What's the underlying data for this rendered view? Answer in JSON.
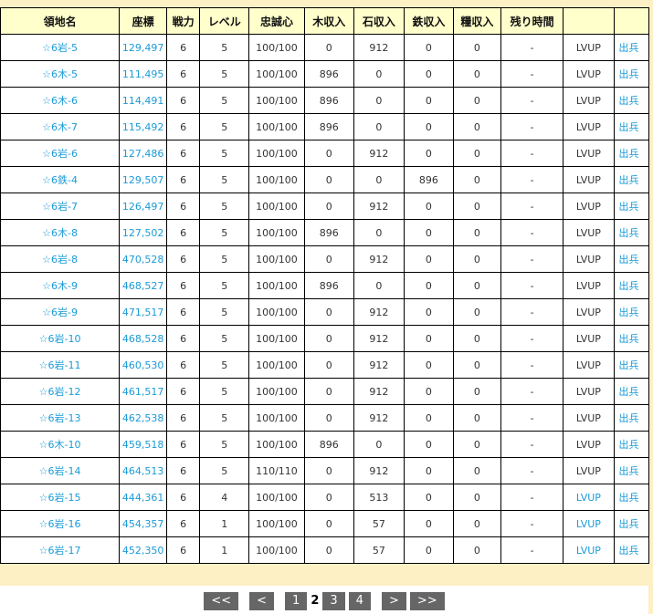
{
  "headers": [
    "領地名",
    "座標",
    "戦力",
    "レベル",
    "忠誠心",
    "木収入",
    "石収入",
    "鉄収入",
    "糧収入",
    "残り時間",
    "",
    ""
  ],
  "rows": [
    [
      "☆6岩-5",
      "129,497",
      "6",
      "5",
      "100/100",
      "0",
      "912",
      "0",
      "0",
      "-",
      "LVUP",
      "出兵"
    ],
    [
      "☆6木-5",
      "111,495",
      "6",
      "5",
      "100/100",
      "896",
      "0",
      "0",
      "0",
      "-",
      "LVUP",
      "出兵"
    ],
    [
      "☆6木-6",
      "114,491",
      "6",
      "5",
      "100/100",
      "896",
      "0",
      "0",
      "0",
      "-",
      "LVUP",
      "出兵"
    ],
    [
      "☆6木-7",
      "115,492",
      "6",
      "5",
      "100/100",
      "896",
      "0",
      "0",
      "0",
      "-",
      "LVUP",
      "出兵"
    ],
    [
      "☆6岩-6",
      "127,486",
      "6",
      "5",
      "100/100",
      "0",
      "912",
      "0",
      "0",
      "-",
      "LVUP",
      "出兵"
    ],
    [
      "☆6鉄-4",
      "129,507",
      "6",
      "5",
      "100/100",
      "0",
      "0",
      "896",
      "0",
      "-",
      "LVUP",
      "出兵"
    ],
    [
      "☆6岩-7",
      "126,497",
      "6",
      "5",
      "100/100",
      "0",
      "912",
      "0",
      "0",
      "-",
      "LVUP",
      "出兵"
    ],
    [
      "☆6木-8",
      "127,502",
      "6",
      "5",
      "100/100",
      "896",
      "0",
      "0",
      "0",
      "-",
      "LVUP",
      "出兵"
    ],
    [
      "☆6岩-8",
      "470,528",
      "6",
      "5",
      "100/100",
      "0",
      "912",
      "0",
      "0",
      "-",
      "LVUP",
      "出兵"
    ],
    [
      "☆6木-9",
      "468,527",
      "6",
      "5",
      "100/100",
      "896",
      "0",
      "0",
      "0",
      "-",
      "LVUP",
      "出兵"
    ],
    [
      "☆6岩-9",
      "471,517",
      "6",
      "5",
      "100/100",
      "0",
      "912",
      "0",
      "0",
      "-",
      "LVUP",
      "出兵"
    ],
    [
      "☆6岩-10",
      "468,528",
      "6",
      "5",
      "100/100",
      "0",
      "912",
      "0",
      "0",
      "-",
      "LVUP",
      "出兵"
    ],
    [
      "☆6岩-11",
      "460,530",
      "6",
      "5",
      "100/100",
      "0",
      "912",
      "0",
      "0",
      "-",
      "LVUP",
      "出兵"
    ],
    [
      "☆6岩-12",
      "461,517",
      "6",
      "5",
      "100/100",
      "0",
      "912",
      "0",
      "0",
      "-",
      "LVUP",
      "出兵"
    ],
    [
      "☆6岩-13",
      "462,538",
      "6",
      "5",
      "100/100",
      "0",
      "912",
      "0",
      "0",
      "-",
      "LVUP",
      "出兵"
    ],
    [
      "☆6木-10",
      "459,518",
      "6",
      "5",
      "100/100",
      "896",
      "0",
      "0",
      "0",
      "-",
      "LVUP",
      "出兵"
    ],
    [
      "☆6岩-14",
      "464,513",
      "6",
      "5",
      "110/110",
      "0",
      "912",
      "0",
      "0",
      "-",
      "LVUP",
      "出兵"
    ],
    [
      "☆6岩-15",
      "444,361",
      "6",
      "4",
      "100/100",
      "0",
      "513",
      "0",
      "0",
      "-",
      "LVUP",
      "出兵"
    ],
    [
      "☆6岩-16",
      "454,357",
      "6",
      "1",
      "100/100",
      "0",
      "57",
      "0",
      "0",
      "-",
      "LVUP",
      "出兵"
    ],
    [
      "☆6岩-17",
      "452,350",
      "6",
      "1",
      "100/100",
      "0",
      "57",
      "0",
      "0",
      "-",
      "LVUP",
      "出兵"
    ]
  ],
  "lvup_link_rows": [
    17,
    18,
    19
  ],
  "pager": {
    "first": "<<",
    "prev": "<",
    "pages": [
      "1",
      "2",
      "3",
      "4"
    ],
    "current": "2",
    "next": ">",
    "last": ">>"
  }
}
